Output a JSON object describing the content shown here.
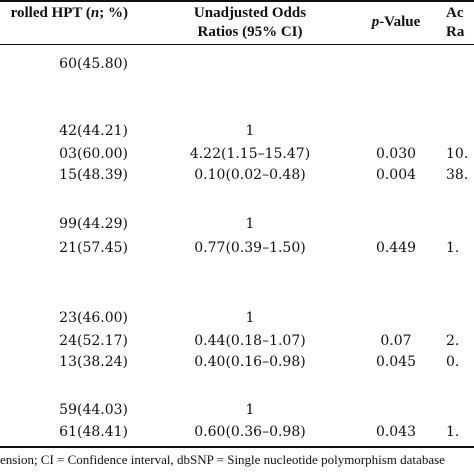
{
  "table": {
    "header": {
      "col1_prefix": "rolled HPT (",
      "col1_n": "n",
      "col1_suffix": "; %)",
      "col2_line1": "Unadjusted Odds",
      "col2_line2": "Ratios (95% CI)",
      "col3_p": "p",
      "col3_suffix": "-Value",
      "col4_line1": "Ac",
      "col4_line2": "Ra"
    },
    "rows": [
      {
        "c1": "60(45.80)",
        "c2": "",
        "c3": "",
        "c4": ""
      },
      {
        "c1": "42(44.21)",
        "c2": "1",
        "c3": "",
        "c4": ""
      },
      {
        "c1": "03(60.00)",
        "c2": "4.22(1.15–15.47)",
        "c3": "0.030",
        "c4": "10."
      },
      {
        "c1": "15(48.39)",
        "c2": "0.10(0.02–0.48)",
        "c3": "0.004",
        "c4": "38."
      },
      {
        "c1": "99(44.29)",
        "c2": "1",
        "c3": "",
        "c4": ""
      },
      {
        "c1": "21(57.45)",
        "c2": "0.77(0.39–1.50)",
        "c3": "0.449",
        "c4": "1."
      },
      {
        "c1": "23(46.00)",
        "c2": "1",
        "c3": "",
        "c4": ""
      },
      {
        "c1": "24(52.17)",
        "c2": "0.44(0.18–1.07)",
        "c3": "0.07",
        "c4": "2."
      },
      {
        "c1": "13(38.24)",
        "c2": "0.40(0.16–0.98)",
        "c3": "0.045",
        "c4": "0."
      },
      {
        "c1": "59(44.03)",
        "c2": "1",
        "c3": "",
        "c4": ""
      },
      {
        "c1": "61(48.41)",
        "c2": "0.60(0.36–0.98)",
        "c3": "0.043",
        "c4": "1."
      }
    ],
    "footnote": "ension; CI = Confidence interval, dbSNP = Single nucleotide polymorphism database"
  }
}
